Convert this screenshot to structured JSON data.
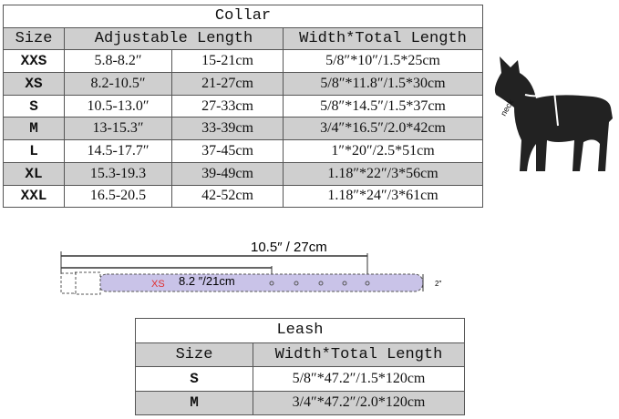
{
  "collar": {
    "title": "Collar",
    "headers": [
      "Size",
      "Adjustable Length",
      "Width*Total Length"
    ],
    "rows": [
      [
        "XXS",
        "5.8-8.2″",
        "15-21cm",
        "5/8″*10″/1.5*25cm"
      ],
      [
        "XS",
        "8.2-10.5″",
        "21-27cm",
        "5/8″*11.8″/1.5*30cm"
      ],
      [
        "S",
        "10.5-13.0″",
        "27-33cm",
        "5/8″*14.5″/1.5*37cm"
      ],
      [
        "M",
        "13-15.3″",
        "33-39cm",
        "3/4″*16.5″/2.0*42cm"
      ],
      [
        "L",
        "14.5-17.7″",
        "37-45cm",
        "1″*20″/2.5*51cm"
      ],
      [
        "XL",
        "15.3-19.3",
        "39-49cm",
        "1.18″*22″/3*56cm"
      ],
      [
        "XXL",
        "16.5-20.5",
        "42-52cm",
        "1.18″*24″/3*61cm"
      ]
    ]
  },
  "diagram": {
    "total_label": "10.5″ / 27cm",
    "size_label": "XS",
    "min_label": "8.2 ″/21cm",
    "width_label": "2″",
    "neck_label": "neck",
    "band_color": "#c9c3e8",
    "size_color": "#e03030"
  },
  "leash": {
    "title": "Leash",
    "headers": [
      "Size",
      "Width*Total Length"
    ],
    "rows": [
      [
        "S",
        "5/8″*47.2″/1.5*120cm"
      ],
      [
        "M",
        "3/4″*47.2″/2.0*120cm"
      ]
    ]
  }
}
